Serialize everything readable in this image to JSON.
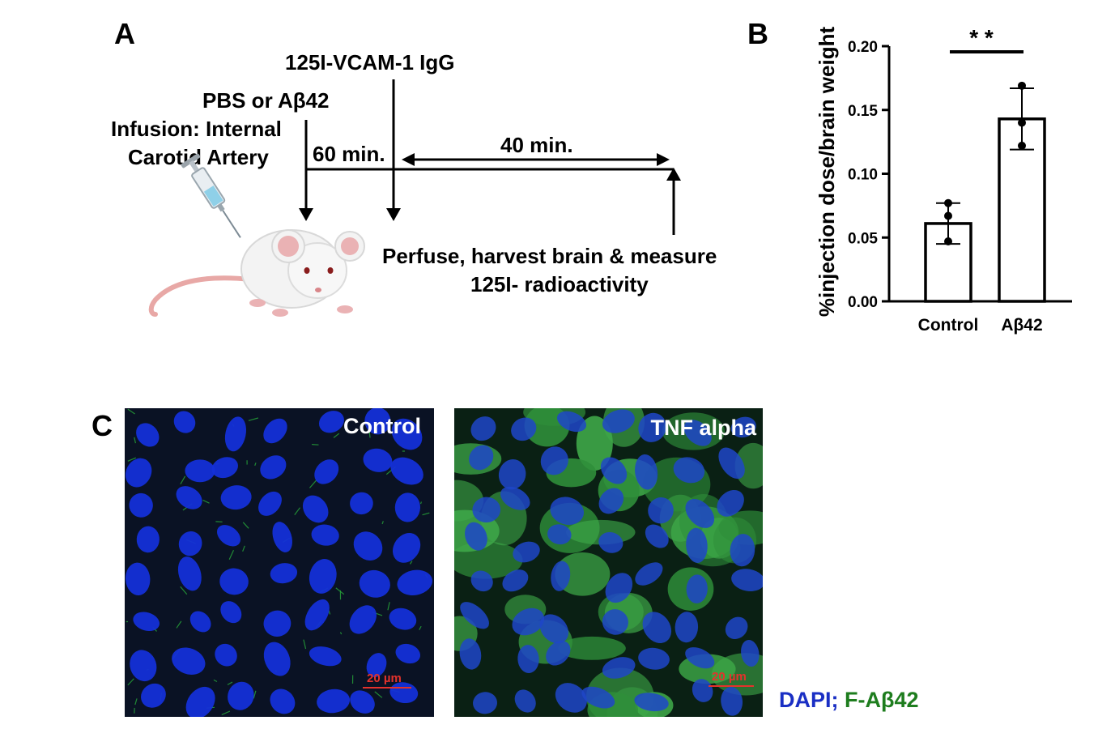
{
  "panels": {
    "a": "A",
    "b": "B",
    "c": "C"
  },
  "panel_a": {
    "tracer_label": "125I-VCAM-1 IgG",
    "treatment_label": "PBS or Aβ42",
    "infusion_line1": "Infusion: Internal",
    "infusion_line2": "Carotid Artery",
    "interval_1": "60 min.",
    "interval_2": "40 min.",
    "endpoint_line1": "Perfuse, harvest brain & measure",
    "endpoint_line2": "125I- radioactivity",
    "icons": [
      "syringe-icon",
      "mouse-icon"
    ]
  },
  "chart_data": {
    "type": "bar",
    "categories": [
      "Control",
      "Aβ42"
    ],
    "values": [
      0.061,
      0.143
    ],
    "error": [
      0.016,
      0.024
    ],
    "points": [
      [
        0.077,
        0.067,
        0.047
      ],
      [
        0.169,
        0.14,
        0.122
      ]
    ],
    "ylabel": "%injection dose/brain weight",
    "ylim": [
      0,
      0.2
    ],
    "yticks": [
      "0.00",
      "0.05",
      "0.10",
      "0.15",
      "0.20"
    ],
    "significance": "* *",
    "grid": false,
    "colors": {
      "bar_fill": "#ffffff",
      "bar_stroke": "#000000"
    }
  },
  "panel_c": {
    "images": [
      {
        "title": "Control",
        "scale": "20 µm"
      },
      {
        "title": "TNF alpha",
        "scale": "20 µm"
      }
    ],
    "legend_dapi": "DAPI",
    "legend_sep": ";",
    "legend_fab": "F-Aβ42",
    "colors": {
      "dapi": "#1a2fc4",
      "fab": "#1e7d1e",
      "scale": "#e3322c"
    }
  }
}
